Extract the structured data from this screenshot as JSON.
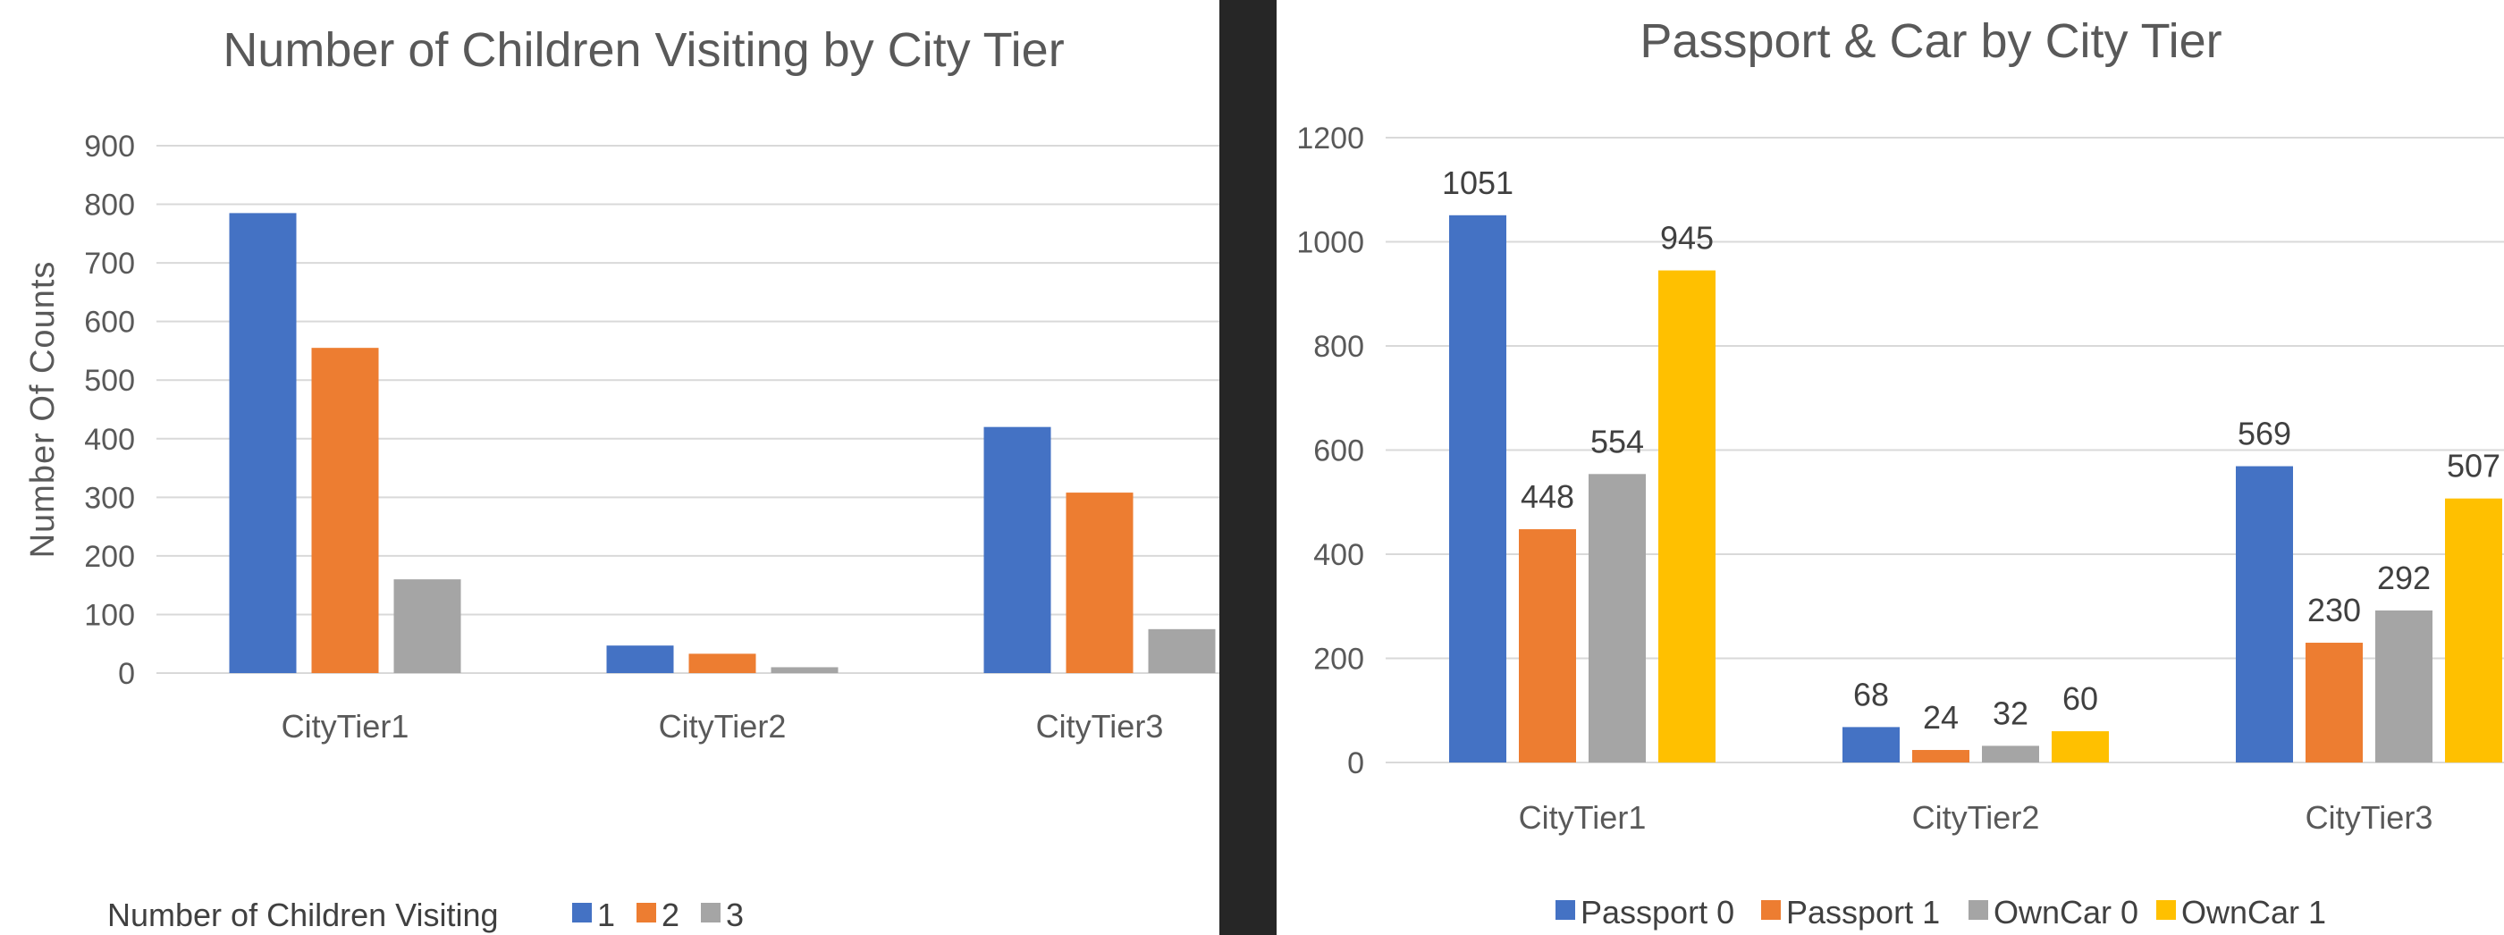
{
  "chart_data": [
    {
      "type": "bar",
      "title": "Number of Children Visiting by City Tier",
      "ylabel": "Number Of Counts",
      "xlabel": "",
      "ylim": [
        0,
        900
      ],
      "yticks": [
        0,
        100,
        200,
        300,
        400,
        500,
        600,
        700,
        800,
        900
      ],
      "grid": true,
      "legend_title": "Number of Children Visiting",
      "legend_position": "bottom",
      "categories": [
        "CityTier1",
        "CityTier2",
        "CityTier3"
      ],
      "series": [
        {
          "name": "1",
          "color": "#4472c4",
          "values": [
            785,
            47,
            420
          ]
        },
        {
          "name": "2",
          "color": "#ed7d31",
          "values": [
            555,
            33,
            308
          ]
        },
        {
          "name": "3",
          "color": "#a5a5a5",
          "values": [
            160,
            10,
            75
          ]
        }
      ]
    },
    {
      "type": "bar",
      "title": "Passport & Car by City Tier",
      "ylabel": "",
      "xlabel": "",
      "ylim": [
        0,
        1200
      ],
      "yticks": [
        0,
        200,
        400,
        600,
        800,
        1000,
        1200
      ],
      "grid": true,
      "legend_position": "bottom",
      "data_labels": true,
      "categories": [
        "CityTier1",
        "CityTier2",
        "CityTier3"
      ],
      "series": [
        {
          "name": "Passport 0",
          "color": "#4472c4",
          "values": [
            1051,
            68,
            569
          ]
        },
        {
          "name": "Passport 1",
          "color": "#ed7d31",
          "values": [
            448,
            24,
            230
          ]
        },
        {
          "name": "OwnCar 0",
          "color": "#a5a5a5",
          "values": [
            554,
            32,
            292
          ]
        },
        {
          "name": "OwnCar 1",
          "color": "#ffc000",
          "values": [
            945,
            60,
            507
          ]
        }
      ]
    }
  ]
}
